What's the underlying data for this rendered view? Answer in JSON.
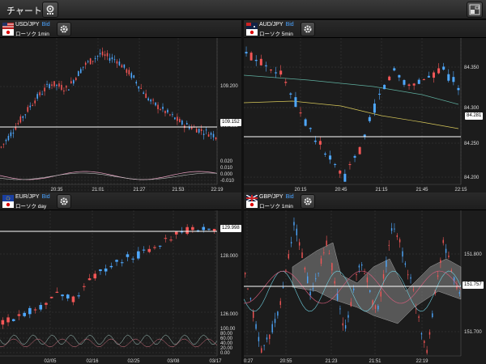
{
  "app": {
    "title": "チャート2"
  },
  "colors": {
    "up": "#f35656",
    "down": "#4ea8ff",
    "bg": "#1c1c1c",
    "grid": "#3a3a3a"
  },
  "panels": [
    {
      "id": "p1",
      "symbol": "USD/JPY",
      "side": "Bid",
      "chart_type": "ローソク 1min",
      "current_price": "109.152",
      "level2": "109.152",
      "price_ticks": [
        "109.200"
      ],
      "indicator_ticks": [
        "0.020",
        "0.010",
        "0.000",
        "-0.010"
      ],
      "x_ticks": [
        "20:35",
        "21:01",
        "21:27",
        "21:53",
        "22:19"
      ]
    },
    {
      "id": "p2",
      "symbol": "AUD/JPY",
      "side": "Bid",
      "chart_type": "ローソク 5min",
      "current_price": "84.281",
      "price_ticks": [
        "84.350",
        "84.300",
        "84.250",
        "84.200"
      ],
      "x_ticks": [
        "20:15",
        "20:45",
        "21:15",
        "21:45",
        "22:15"
      ]
    },
    {
      "id": "p3",
      "symbol": "EUR/JPY",
      "side": "Bid",
      "chart_type": "ローソク day",
      "current_price": "129.998",
      "price_ticks": [
        "128.000",
        "126.000"
      ],
      "indicator_ticks": [
        "100.00",
        "80.00",
        "60.00",
        "40.00",
        "20.00",
        "0.00"
      ],
      "x_ticks": [
        "02/05",
        "02/16",
        "02/25",
        "03/08",
        "03/17"
      ]
    },
    {
      "id": "p4",
      "symbol": "GBP/JPY",
      "side": "Bid",
      "chart_type": "ローソク 1min",
      "current_price": "151.757",
      "price_ticks": [
        "151.800",
        "151.750",
        "151.700"
      ],
      "x_ticks": [
        "20:27",
        "20:55",
        "21:23",
        "21:51",
        "22:19"
      ]
    }
  ]
}
